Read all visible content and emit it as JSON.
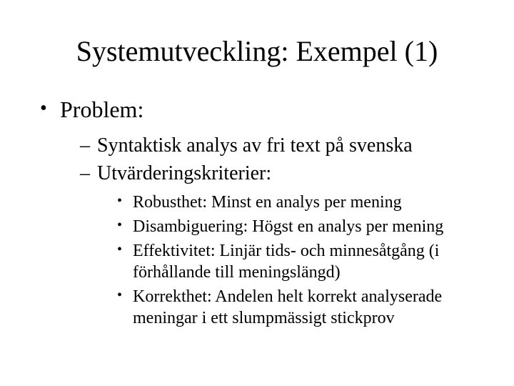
{
  "slide": {
    "title": "Systemutveckling: Exempel (1)",
    "title_fontsize": 40,
    "background_color": "#ffffff",
    "text_color": "#000000",
    "font_family": "Times New Roman",
    "bullets": {
      "lvl1": [
        {
          "text": "Problem:",
          "children": [
            {
              "text": "Syntaktisk analys av fri text på svenska"
            },
            {
              "text": "Utvärderingskriterier:",
              "children": [
                {
                  "text": "Robusthet: Minst en analys per mening"
                },
                {
                  "text": "Disambiguering: Högst en analys per mening"
                },
                {
                  "text": "Effektivitet: Linjär tids- och minnesåtgång (i förhållande till meningslängd)"
                },
                {
                  "text": "Korrekthet: Andelen helt korrekt analyserade meningar i ett slumpmässigt stickprov"
                }
              ]
            }
          ]
        }
      ]
    },
    "fontsize_lvl1": 32,
    "fontsize_lvl2": 28,
    "fontsize_lvl3": 24
  }
}
